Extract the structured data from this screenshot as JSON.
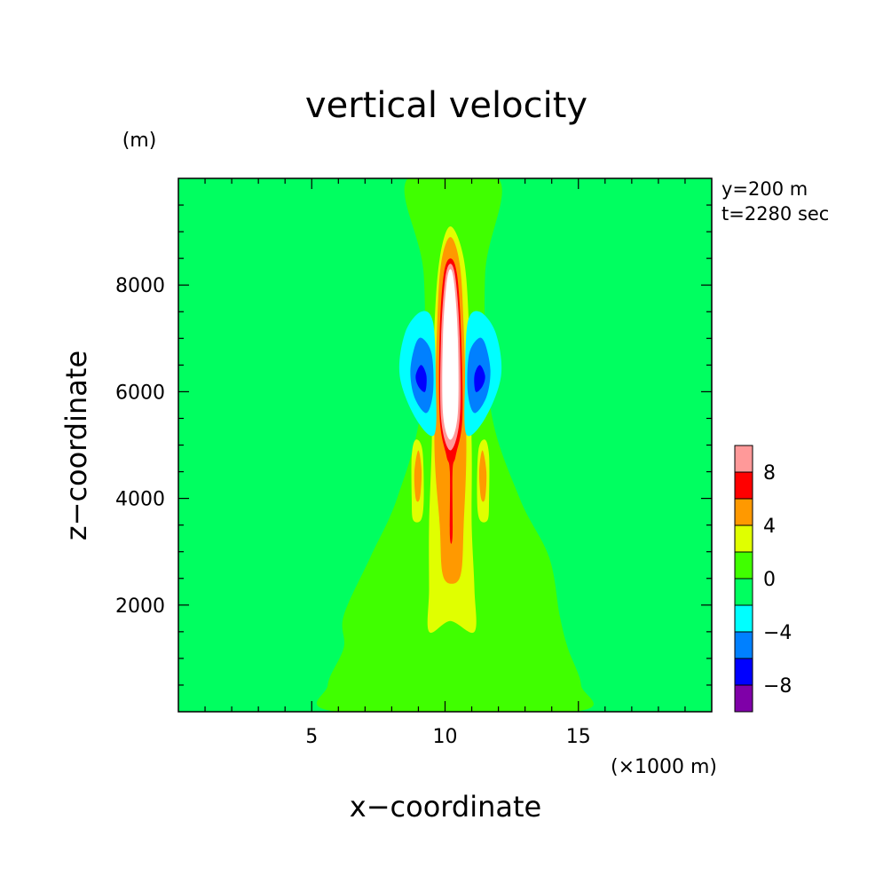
{
  "chart_data": {
    "type": "heatmap",
    "title": "vertical velocity",
    "xlabel": "x−coordinate",
    "ylabel": "z−coordinate",
    "x_unit": "(×1000 m)",
    "y_unit": "(m)",
    "annotations": [
      "y=200 m",
      "t=2280 sec"
    ],
    "xlim": [
      0,
      20
    ],
    "ylim": [
      0,
      10000
    ],
    "x_ticks": [
      5,
      10,
      15
    ],
    "x_tick_labels": [
      "5",
      "10",
      "15"
    ],
    "y_ticks": [
      2000,
      4000,
      6000,
      8000
    ],
    "y_tick_labels": [
      "2000",
      "4000",
      "6000",
      "8000"
    ],
    "colorbar": {
      "levels": [
        -10,
        -8,
        -6,
        -4,
        -2,
        0,
        2,
        4,
        6,
        8,
        10
      ],
      "tick_values": [
        -8,
        -4,
        0,
        4,
        8
      ],
      "tick_labels": [
        "−8",
        "−4",
        "0",
        "4",
        "8"
      ],
      "colors": [
        "#7f00a8",
        "#0000ff",
        "#0080ff",
        "#00ffff",
        "#00ff60",
        "#40ff00",
        "#e0ff00",
        "#ff9900",
        "#ff0000",
        "#ff9999"
      ]
    },
    "background_color": "#00ff60",
    "contours": [
      {
        "level": "0 to 2",
        "color": "#40ff00",
        "points": [
          [
            8.6,
            10000
          ],
          [
            12,
            10000
          ],
          [
            11.5,
            8200
          ],
          [
            11.7,
            5700
          ],
          [
            12.8,
            4000
          ],
          [
            13.9,
            2900
          ],
          [
            14.3,
            1800
          ],
          [
            14.6,
            1200
          ],
          [
            15.1,
            500
          ],
          [
            14.8,
            0
          ],
          [
            6,
            0
          ],
          [
            5.6,
            500
          ],
          [
            6.2,
            1200
          ],
          [
            6.2,
            1800
          ],
          [
            7.2,
            2900
          ],
          [
            8.2,
            4000
          ],
          [
            9.1,
            5700
          ],
          [
            9.2,
            8200
          ]
        ]
      },
      {
        "level": "> 2",
        "color": "#e0ff00",
        "points": [
          [
            10.2,
            9100
          ],
          [
            10.7,
            8500
          ],
          [
            10.9,
            7200
          ],
          [
            11,
            5000
          ],
          [
            11,
            3500
          ],
          [
            11.1,
            2300
          ],
          [
            11.1,
            1500
          ],
          [
            10.2,
            1700
          ],
          [
            9.4,
            1500
          ],
          [
            9.4,
            2300
          ],
          [
            9.4,
            3500
          ],
          [
            9.5,
            5000
          ],
          [
            9.6,
            7200
          ],
          [
            9.8,
            8500
          ]
        ]
      },
      {
        "level": "> 4",
        "color": "#ff9900",
        "points": [
          [
            10.2,
            8900
          ],
          [
            10.55,
            8400
          ],
          [
            10.7,
            7200
          ],
          [
            10.8,
            5000
          ],
          [
            10.7,
            3500
          ],
          [
            10.6,
            2600
          ],
          [
            10.25,
            2400
          ],
          [
            9.9,
            2600
          ],
          [
            9.8,
            3500
          ],
          [
            9.6,
            5000
          ],
          [
            9.7,
            7200
          ],
          [
            9.85,
            8400
          ]
        ]
      },
      {
        "level": "> 6",
        "color": "#ff0000",
        "points": [
          [
            10.2,
            8500
          ],
          [
            10.45,
            8200
          ],
          [
            10.6,
            7100
          ],
          [
            10.65,
            5500
          ],
          [
            10.4,
            4800
          ],
          [
            10.28,
            4500
          ],
          [
            10.28,
            3300
          ],
          [
            10.18,
            3300
          ],
          [
            10.18,
            4500
          ],
          [
            10.05,
            4800
          ],
          [
            9.8,
            5500
          ],
          [
            9.8,
            7100
          ],
          [
            9.95,
            8200
          ]
        ]
      },
      {
        "level": "> 8",
        "color": "#ff9999",
        "points": [
          [
            10.2,
            8400
          ],
          [
            10.4,
            8100
          ],
          [
            10.55,
            7000
          ],
          [
            10.55,
            5500
          ],
          [
            10.2,
            4900
          ],
          [
            9.85,
            5500
          ],
          [
            9.85,
            7000
          ],
          [
            10.0,
            8100
          ]
        ]
      },
      {
        "level": "> 10",
        "color": "#ffffff",
        "points": [
          [
            10.2,
            8300
          ],
          [
            10.35,
            8000
          ],
          [
            10.48,
            7000
          ],
          [
            10.48,
            5600
          ],
          [
            10.2,
            5100
          ],
          [
            9.92,
            5600
          ],
          [
            9.92,
            7000
          ],
          [
            10.05,
            8000
          ]
        ]
      },
      {
        "level": "-2 to -4 (left)",
        "color": "#00ffff",
        "points": [
          [
            9.1,
            7500
          ],
          [
            9.55,
            7300
          ],
          [
            9.65,
            6200
          ],
          [
            9.6,
            5200
          ],
          [
            8.9,
            5500
          ],
          [
            8.3,
            6300
          ],
          [
            8.5,
            7100
          ]
        ]
      },
      {
        "level": "-4 to -6 (left)",
        "color": "#0080ff",
        "points": [
          [
            9.15,
            7000
          ],
          [
            9.5,
            6700
          ],
          [
            9.55,
            6000
          ],
          [
            9.3,
            5600
          ],
          [
            8.85,
            5900
          ],
          [
            8.7,
            6400
          ],
          [
            8.9,
            6900
          ]
        ]
      },
      {
        "level": "< -6 (left)",
        "color": "#0000ff",
        "points": [
          [
            9.1,
            6500
          ],
          [
            9.3,
            6300
          ],
          [
            9.25,
            6000
          ],
          [
            9.0,
            6100
          ],
          [
            8.9,
            6300
          ]
        ]
      },
      {
        "level": "-2 to -4 (right)",
        "color": "#00ffff",
        "points": [
          [
            11.3,
            7500
          ],
          [
            10.85,
            7300
          ],
          [
            10.75,
            6200
          ],
          [
            10.8,
            5200
          ],
          [
            11.5,
            5500
          ],
          [
            12.1,
            6300
          ],
          [
            11.9,
            7100
          ]
        ]
      },
      {
        "level": "-4 to -6 (right)",
        "color": "#0080ff",
        "points": [
          [
            11.25,
            7000
          ],
          [
            10.9,
            6700
          ],
          [
            10.85,
            6000
          ],
          [
            11.1,
            5600
          ],
          [
            11.55,
            5900
          ],
          [
            11.7,
            6400
          ],
          [
            11.5,
            6900
          ]
        ]
      },
      {
        "level": "< -6 (right)",
        "color": "#0000ff",
        "points": [
          [
            11.3,
            6500
          ],
          [
            11.1,
            6300
          ],
          [
            11.15,
            6000
          ],
          [
            11.4,
            6100
          ],
          [
            11.5,
            6300
          ]
        ]
      },
      {
        "level": "> 2 (left lobe)",
        "color": "#e0ff00",
        "points": [
          [
            8.9,
            5100
          ],
          [
            9.15,
            4900
          ],
          [
            9.2,
            4000
          ],
          [
            9.1,
            3600
          ],
          [
            8.8,
            3600
          ],
          [
            8.75,
            4000
          ],
          [
            8.75,
            4800
          ]
        ]
      },
      {
        "level": "> 4 (left lobe)",
        "color": "#ff9900",
        "points": [
          [
            9.0,
            4900
          ],
          [
            9.12,
            4500
          ],
          [
            9.05,
            4000
          ],
          [
            8.9,
            4000
          ],
          [
            8.85,
            4500
          ]
        ]
      },
      {
        "level": "> 2 (right lobe)",
        "color": "#e0ff00",
        "points": [
          [
            11.5,
            5100
          ],
          [
            11.65,
            4800
          ],
          [
            11.65,
            4000
          ],
          [
            11.6,
            3600
          ],
          [
            11.3,
            3600
          ],
          [
            11.2,
            4000
          ],
          [
            11.25,
            4900
          ]
        ]
      },
      {
        "level": "> 4 (right lobe)",
        "color": "#ff9900",
        "points": [
          [
            11.4,
            4900
          ],
          [
            11.55,
            4500
          ],
          [
            11.5,
            4000
          ],
          [
            11.35,
            4000
          ],
          [
            11.28,
            4500
          ]
        ]
      }
    ]
  }
}
